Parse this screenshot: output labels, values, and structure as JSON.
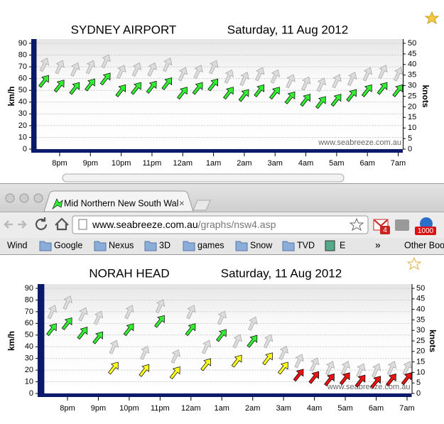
{
  "chart_data": [
    {
      "type": "wind-arrows",
      "title": "SYDNEY AIRPORT",
      "subtitle": "Saturday, 11 Aug 2012",
      "y_label": "km/h",
      "y2_label": "knots",
      "watermark": "www.seabreeze.com.au",
      "ylim": [
        0,
        90
      ],
      "yticks": [
        0,
        10,
        20,
        30,
        40,
        50,
        60,
        70,
        80,
        90
      ],
      "y2lim": [
        0,
        50
      ],
      "y2ticks": [
        0,
        5,
        10,
        15,
        20,
        25,
        30,
        35,
        40,
        45,
        50
      ],
      "xlim": [
        0.25,
        12.15
      ],
      "xticks": [
        {
          "value": 1,
          "label": "8pm"
        },
        {
          "value": 2,
          "label": "9pm"
        },
        {
          "value": 3,
          "label": "10pm"
        },
        {
          "value": 4,
          "label": "11pm"
        },
        {
          "value": 5,
          "label": "12am"
        },
        {
          "value": 6,
          "label": "1am"
        },
        {
          "value": 7,
          "label": "2am"
        },
        {
          "value": 8,
          "label": "3am"
        },
        {
          "value": 9,
          "label": "4am"
        },
        {
          "value": 10,
          "label": "5am"
        },
        {
          "value": 11,
          "label": "6am"
        },
        {
          "value": 12,
          "label": "7am"
        }
      ],
      "x": [
        0.5,
        1,
        1.5,
        2,
        2.5,
        3,
        3.5,
        4,
        4.5,
        5,
        5.5,
        6,
        6.5,
        7,
        7.5,
        8,
        8.5,
        9,
        9.5,
        10,
        10.5,
        11,
        11.5,
        12
      ],
      "series": [
        {
          "color": "#dddddd",
          "values": [
            72,
            70,
            68,
            70,
            75,
            66,
            68,
            68,
            72,
            64,
            66,
            70,
            62,
            60,
            64,
            62,
            58,
            56,
            55,
            58,
            60,
            64,
            66,
            64
          ]
        },
        {
          "color": "#33ee33",
          "values": [
            58,
            54,
            52,
            55,
            60,
            50,
            52,
            53,
            56,
            48,
            52,
            55,
            48,
            46,
            50,
            48,
            44,
            42,
            40,
            42,
            46,
            50,
            52,
            50
          ]
        }
      ]
    },
    {
      "type": "wind-arrows",
      "title": "NORAH HEAD",
      "subtitle": "Saturday, 11 Aug 2012",
      "y_label": "km/h",
      "y2_label": "knots",
      "watermark": "www.seabreeze.com.au",
      "ylim": [
        0,
        90
      ],
      "yticks": [
        0,
        10,
        20,
        30,
        40,
        50,
        60,
        70,
        80,
        90
      ],
      "y2lim": [
        0,
        50
      ],
      "y2ticks": [
        0,
        5,
        10,
        15,
        20,
        25,
        30,
        35,
        40,
        45,
        50
      ],
      "xlim": [
        0.25,
        12.15
      ],
      "xticks": [
        {
          "value": 1,
          "label": "8pm"
        },
        {
          "value": 2,
          "label": "9pm"
        },
        {
          "value": 3,
          "label": "10pm"
        },
        {
          "value": 4,
          "label": "11pm"
        },
        {
          "value": 5,
          "label": "12am"
        },
        {
          "value": 6,
          "label": "1am"
        },
        {
          "value": 7,
          "label": "2am"
        },
        {
          "value": 8,
          "label": "3am"
        },
        {
          "value": 9,
          "label": "4am"
        },
        {
          "value": 10,
          "label": "5am"
        },
        {
          "value": 11,
          "label": "6am"
        },
        {
          "value": 12,
          "label": "7am"
        }
      ],
      "x": [
        0.5,
        1,
        1.5,
        2,
        2.5,
        3,
        3.5,
        4,
        4.5,
        5,
        5.5,
        6,
        6.5,
        7,
        7.5,
        8,
        8.5,
        9,
        9.5,
        10,
        10.5,
        11,
        11.5,
        12
      ],
      "series": [
        {
          "color": "#dddddd",
          "values": [
            70,
            78,
            68,
            65,
            40,
            70,
            35,
            75,
            32,
            70,
            40,
            65,
            45,
            60,
            45,
            35,
            28,
            25,
            22,
            22,
            20,
            20,
            22,
            22
          ]
        },
        {
          "color": "#33ee33",
          "values": [
            55,
            60,
            52,
            48,
            null,
            55,
            null,
            62,
            null,
            55,
            null,
            50,
            null,
            45,
            null,
            null,
            null,
            null,
            null,
            null,
            null,
            null,
            null,
            null
          ]
        },
        {
          "color": "#ffff22",
          "values": [
            null,
            null,
            null,
            null,
            22,
            null,
            20,
            null,
            18,
            null,
            25,
            null,
            28,
            null,
            30,
            22,
            null,
            null,
            null,
            null,
            null,
            null,
            null,
            null
          ]
        },
        {
          "color": "#ee1111",
          "values": [
            null,
            null,
            null,
            null,
            null,
            null,
            null,
            null,
            null,
            null,
            null,
            null,
            null,
            null,
            null,
            null,
            16,
            14,
            12,
            13,
            11,
            10,
            12,
            13
          ]
        }
      ]
    }
  ],
  "browser": {
    "tab_title": "Mid Northern New South Wal",
    "url_host": "www.seabreeze.com.au",
    "url_path": "/graphs/nsw4.asp",
    "bookmarks": [
      "Wind",
      "Google",
      "Nexus",
      "3D",
      "games",
      "Snow",
      "TVD",
      "E"
    ],
    "overflow": "»",
    "other_bookmarks": "Other Boo",
    "gmail_badge": "4",
    "rss_badge": "1000"
  }
}
